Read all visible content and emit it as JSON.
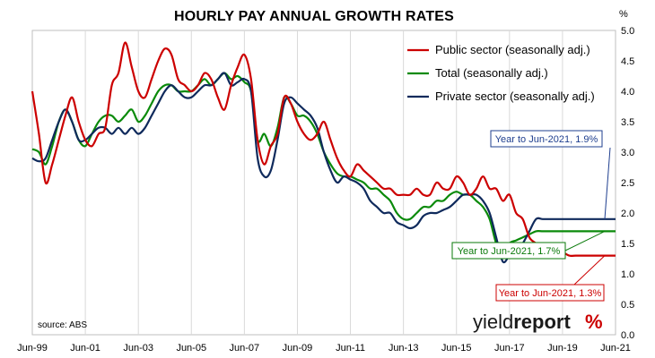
{
  "chart_data": {
    "type": "line",
    "title": "HOURLY PAY ANNUAL GROWTH RATES",
    "unit": "%",
    "xlabel": "",
    "ylabel": "",
    "x_ticks": [
      "Jun-99",
      "Jun-01",
      "Jun-03",
      "Jun-05",
      "Jun-07",
      "Jun-09",
      "Jun-11",
      "Jun-13",
      "Jun-15",
      "Jun-17",
      "Jun-19",
      "Jun-21"
    ],
    "y_ticks": [
      "0.0",
      "0.5",
      "1.0",
      "1.5",
      "2.0",
      "2.5",
      "3.0",
      "3.5",
      "4.0",
      "4.5",
      "5.0"
    ],
    "xlim": [
      1999.5,
      2021.5
    ],
    "ylim": [
      0,
      5
    ],
    "y_axis_side": "right",
    "grid": "vertical",
    "legend_position": "top-right",
    "series": [
      {
        "name": "Public sector (seasonally adj.)",
        "color": "#cc0000",
        "x": [
          1999.5,
          1999.75,
          2000.0,
          2000.25,
          2000.5,
          2000.75,
          2001.0,
          2001.25,
          2001.5,
          2001.75,
          2002.0,
          2002.25,
          2002.5,
          2002.75,
          2003.0,
          2003.25,
          2003.5,
          2003.75,
          2004.0,
          2004.25,
          2004.5,
          2004.75,
          2005.0,
          2005.25,
          2005.5,
          2005.75,
          2006.0,
          2006.25,
          2006.5,
          2006.75,
          2007.0,
          2007.25,
          2007.5,
          2007.75,
          2008.0,
          2008.25,
          2008.5,
          2008.75,
          2009.0,
          2009.25,
          2009.5,
          2009.75,
          2010.0,
          2010.25,
          2010.5,
          2010.75,
          2011.0,
          2011.25,
          2011.5,
          2011.75,
          2012.0,
          2012.25,
          2012.5,
          2012.75,
          2013.0,
          2013.25,
          2013.5,
          2013.75,
          2014.0,
          2014.25,
          2014.5,
          2014.75,
          2015.0,
          2015.25,
          2015.5,
          2015.75,
          2016.0,
          2016.25,
          2016.5,
          2016.75,
          2017.0,
          2017.25,
          2017.5,
          2017.75,
          2018.0,
          2018.25,
          2018.5,
          2018.75,
          2019.0,
          2019.25,
          2019.5,
          2019.75,
          2020.0,
          2020.25,
          2020.5,
          2020.75,
          2021.0,
          2021.25,
          2021.5
        ],
        "values": [
          4.0,
          3.3,
          2.5,
          2.8,
          3.2,
          3.6,
          3.9,
          3.5,
          3.2,
          3.1,
          3.3,
          3.4,
          4.1,
          4.3,
          4.8,
          4.4,
          4.0,
          3.9,
          4.2,
          4.5,
          4.7,
          4.6,
          4.2,
          4.1,
          4.0,
          4.1,
          4.3,
          4.2,
          3.9,
          3.7,
          4.1,
          4.4,
          4.6,
          4.2,
          3.2,
          2.8,
          3.1,
          3.3,
          3.9,
          3.8,
          3.5,
          3.3,
          3.2,
          3.3,
          3.5,
          3.2,
          2.9,
          2.7,
          2.6,
          2.8,
          2.7,
          2.6,
          2.5,
          2.4,
          2.4,
          2.3,
          2.3,
          2.3,
          2.4,
          2.3,
          2.3,
          2.5,
          2.4,
          2.4,
          2.6,
          2.5,
          2.3,
          2.4,
          2.6,
          2.4,
          2.4,
          2.2,
          2.3,
          2.0,
          1.9,
          1.6,
          1.5,
          1.4,
          1.35,
          1.3,
          1.35,
          1.3,
          1.3,
          1.3,
          1.3,
          1.3,
          1.3,
          1.3,
          1.3
        ]
      },
      {
        "name": "Total (seasonally adj.)",
        "color": "#0a8a0a",
        "x": [
          1999.5,
          1999.75,
          2000.0,
          2000.25,
          2000.5,
          2000.75,
          2001.0,
          2001.25,
          2001.5,
          2001.75,
          2002.0,
          2002.25,
          2002.5,
          2002.75,
          2003.0,
          2003.25,
          2003.5,
          2003.75,
          2004.0,
          2004.25,
          2004.5,
          2004.75,
          2005.0,
          2005.25,
          2005.5,
          2005.75,
          2006.0,
          2006.25,
          2006.5,
          2006.75,
          2007.0,
          2007.25,
          2007.5,
          2007.75,
          2008.0,
          2008.25,
          2008.5,
          2008.75,
          2009.0,
          2009.25,
          2009.5,
          2009.75,
          2010.0,
          2010.25,
          2010.5,
          2010.75,
          2011.0,
          2011.25,
          2011.5,
          2011.75,
          2012.0,
          2012.25,
          2012.5,
          2012.75,
          2013.0,
          2013.25,
          2013.5,
          2013.75,
          2014.0,
          2014.25,
          2014.5,
          2014.75,
          2015.0,
          2015.25,
          2015.5,
          2015.75,
          2016.0,
          2016.25,
          2016.5,
          2016.75,
          2017.0,
          2017.25,
          2017.5,
          2017.75,
          2018.0,
          2018.25,
          2018.5,
          2018.75,
          2019.0,
          2019.25,
          2019.5,
          2019.75,
          2020.0,
          2020.25,
          2020.5,
          2020.75,
          2021.0,
          2021.25,
          2021.5
        ],
        "values": [
          3.05,
          3.0,
          2.8,
          3.1,
          3.5,
          3.7,
          3.5,
          3.2,
          3.1,
          3.3,
          3.5,
          3.6,
          3.6,
          3.5,
          3.6,
          3.7,
          3.5,
          3.6,
          3.8,
          4.0,
          4.1,
          4.1,
          4.0,
          4.0,
          4.0,
          4.1,
          4.2,
          4.1,
          4.2,
          4.3,
          4.2,
          4.25,
          4.15,
          4.0,
          3.2,
          3.3,
          3.1,
          3.4,
          3.9,
          3.8,
          3.6,
          3.6,
          3.5,
          3.3,
          3.0,
          2.8,
          2.65,
          2.6,
          2.6,
          2.55,
          2.5,
          2.4,
          2.4,
          2.3,
          2.2,
          2.0,
          1.9,
          1.9,
          2.0,
          2.1,
          2.1,
          2.2,
          2.2,
          2.3,
          2.35,
          2.3,
          2.3,
          2.2,
          2.1,
          1.9,
          1.5,
          1.3,
          1.5,
          1.55,
          1.6,
          1.65,
          1.7,
          1.7,
          1.7,
          1.7,
          1.7,
          1.7,
          1.7,
          1.7,
          1.7,
          1.7,
          1.7,
          1.7,
          1.7
        ]
      },
      {
        "name": "Private sector (seasonally adj.)",
        "color": "#0f2a5c",
        "x": [
          1999.5,
          1999.75,
          2000.0,
          2000.25,
          2000.5,
          2000.75,
          2001.0,
          2001.25,
          2001.5,
          2001.75,
          2002.0,
          2002.25,
          2002.5,
          2002.75,
          2003.0,
          2003.25,
          2003.5,
          2003.75,
          2004.0,
          2004.25,
          2004.5,
          2004.75,
          2005.0,
          2005.25,
          2005.5,
          2005.75,
          2006.0,
          2006.25,
          2006.5,
          2006.75,
          2007.0,
          2007.25,
          2007.5,
          2007.75,
          2008.0,
          2008.25,
          2008.5,
          2008.75,
          2009.0,
          2009.25,
          2009.5,
          2009.75,
          2010.0,
          2010.25,
          2010.5,
          2010.75,
          2011.0,
          2011.25,
          2011.5,
          2011.75,
          2012.0,
          2012.25,
          2012.5,
          2012.75,
          2013.0,
          2013.25,
          2013.5,
          2013.75,
          2014.0,
          2014.25,
          2014.5,
          2014.75,
          2015.0,
          2015.25,
          2015.5,
          2015.75,
          2016.0,
          2016.25,
          2016.5,
          2016.75,
          2017.0,
          2017.25,
          2017.5,
          2017.75,
          2018.0,
          2018.25,
          2018.5,
          2018.75,
          2019.0,
          2019.25,
          2019.5,
          2019.75,
          2020.0,
          2020.25,
          2020.5,
          2020.75,
          2021.0,
          2021.25,
          2021.5
        ],
        "values": [
          2.9,
          2.85,
          2.9,
          3.2,
          3.5,
          3.7,
          3.5,
          3.2,
          3.2,
          3.3,
          3.4,
          3.4,
          3.3,
          3.4,
          3.3,
          3.4,
          3.3,
          3.4,
          3.6,
          3.8,
          4.0,
          4.1,
          4.0,
          3.9,
          3.9,
          4.0,
          4.1,
          4.1,
          4.2,
          4.3,
          4.1,
          4.15,
          4.2,
          4.0,
          2.9,
          2.6,
          2.7,
          3.2,
          3.8,
          3.9,
          3.8,
          3.7,
          3.6,
          3.4,
          3.0,
          2.7,
          2.5,
          2.6,
          2.55,
          2.5,
          2.4,
          2.2,
          2.1,
          2.0,
          2.0,
          1.85,
          1.8,
          1.75,
          1.8,
          1.95,
          2.0,
          2.0,
          2.05,
          2.1,
          2.2,
          2.3,
          2.3,
          2.3,
          2.2,
          2.0,
          1.6,
          1.2,
          1.3,
          1.35,
          1.5,
          1.7,
          1.9,
          1.9,
          1.9,
          1.9,
          1.9,
          1.9,
          1.9,
          1.9,
          1.9,
          1.9,
          1.9,
          1.9,
          1.9
        ]
      }
    ],
    "annotations": [
      {
        "text": "Year to Jun-2021, 1.9%",
        "color": "#1f3f8f",
        "series": "Private sector (seasonally adj.)",
        "x": 2021.5,
        "y": 1.9
      },
      {
        "text": "Year to Jun-2021, 1.7%",
        "color": "#0a7a0a",
        "series": "Total (seasonally adj.)",
        "x": 2021.5,
        "y": 1.7
      },
      {
        "text": "Year to Jun-2021, 1.3%",
        "color": "#cc0000",
        "series": "Public sector (seasonally adj.)",
        "x": 2021.5,
        "y": 1.3
      }
    ],
    "source": "source: ABS",
    "brand": {
      "text_main": "yield",
      "text_bold": "report",
      "symbol": "%"
    }
  }
}
